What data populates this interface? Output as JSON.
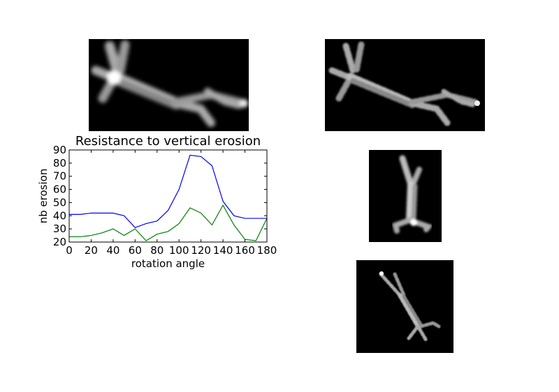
{
  "chart_data": {
    "type": "line",
    "title": "Resistance to vertical erosion",
    "xlabel": "rotation angle",
    "ylabel": "nb erosion",
    "xlim": [
      0,
      180
    ],
    "ylim": [
      20,
      90
    ],
    "xticks": [
      0,
      20,
      40,
      60,
      80,
      100,
      120,
      140,
      160,
      180
    ],
    "yticks": [
      20,
      30,
      40,
      50,
      60,
      70,
      80,
      90
    ],
    "grid": false,
    "series": [
      {
        "color": "#0000ff",
        "x": [
          0,
          10,
          20,
          30,
          40,
          50,
          60,
          70,
          80,
          90,
          100,
          110,
          120,
          130,
          140,
          150,
          160,
          170,
          180
        ],
        "y": [
          41,
          41,
          42,
          42,
          42,
          40,
          31,
          34,
          36,
          44,
          60,
          86,
          85,
          78,
          51,
          40,
          38,
          38,
          38
        ]
      },
      {
        "color": "#008000",
        "x": [
          0,
          10,
          20,
          30,
          40,
          50,
          60,
          70,
          80,
          90,
          100,
          110,
          120,
          130,
          140,
          150,
          160,
          170,
          180
        ],
        "y": [
          24,
          24,
          25,
          27,
          30,
          25,
          30,
          21,
          26,
          28,
          34,
          46,
          42,
          33,
          48,
          33,
          22,
          21,
          38
        ]
      }
    ]
  },
  "images": {
    "background_color": "#000000",
    "panels": [
      {
        "name": "chromosome-image-top-left",
        "style": "blurred"
      },
      {
        "name": "chromosome-image-top-right",
        "style": "textured"
      },
      {
        "name": "chromosome-image-middle-right",
        "style": "rotated-upright"
      },
      {
        "name": "chromosome-image-bottom-right",
        "style": "rotated-textured"
      }
    ]
  }
}
